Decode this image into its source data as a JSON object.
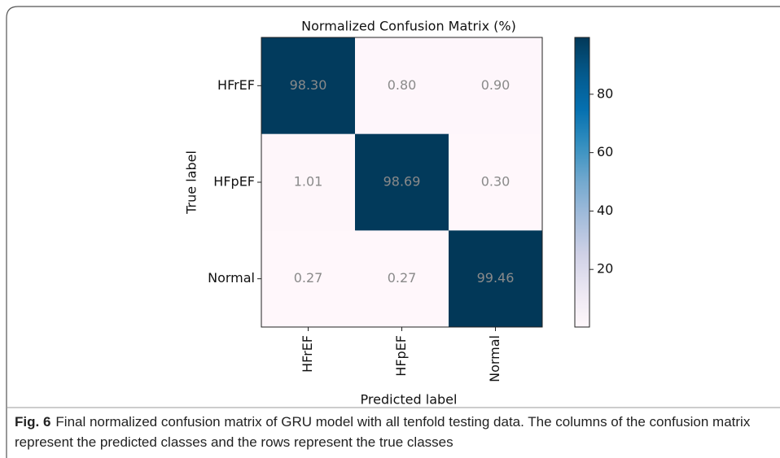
{
  "chart_data": {
    "type": "heatmap",
    "title": "Normalized Confusion Matrix (%)",
    "xlabel": "Predicted label",
    "ylabel": "True label",
    "x_categories": [
      "HFrEF",
      "HFpEF",
      "Normal"
    ],
    "y_categories": [
      "HFrEF",
      "HFpEF",
      "Normal"
    ],
    "values": [
      [
        98.3,
        0.8,
        0.9
      ],
      [
        1.01,
        98.69,
        0.3
      ],
      [
        0.27,
        0.27,
        99.46
      ]
    ],
    "value_labels": [
      [
        "98.30",
        "0.80",
        "0.90"
      ],
      [
        "1.01",
        "98.69",
        "0.30"
      ],
      [
        "0.27",
        "0.27",
        "99.46"
      ]
    ],
    "clim": [
      0.27,
      99.46
    ],
    "cticks": [
      20,
      40,
      60,
      80
    ],
    "colorscale": [
      "#fff7fb",
      "#ece7f2",
      "#d0d1e6",
      "#a6bddb",
      "#74a9cf",
      "#3690c0",
      "#0570b0",
      "#045a8d",
      "#023858"
    ],
    "cell_text_color": "#8a8a8a"
  },
  "caption": {
    "label": "Fig. 6",
    "text": "Final normalized confusion matrix of GRU model with all tenfold testing data. The columns of the confusion matrix represent the predicted classes and the rows represent the true classes"
  }
}
